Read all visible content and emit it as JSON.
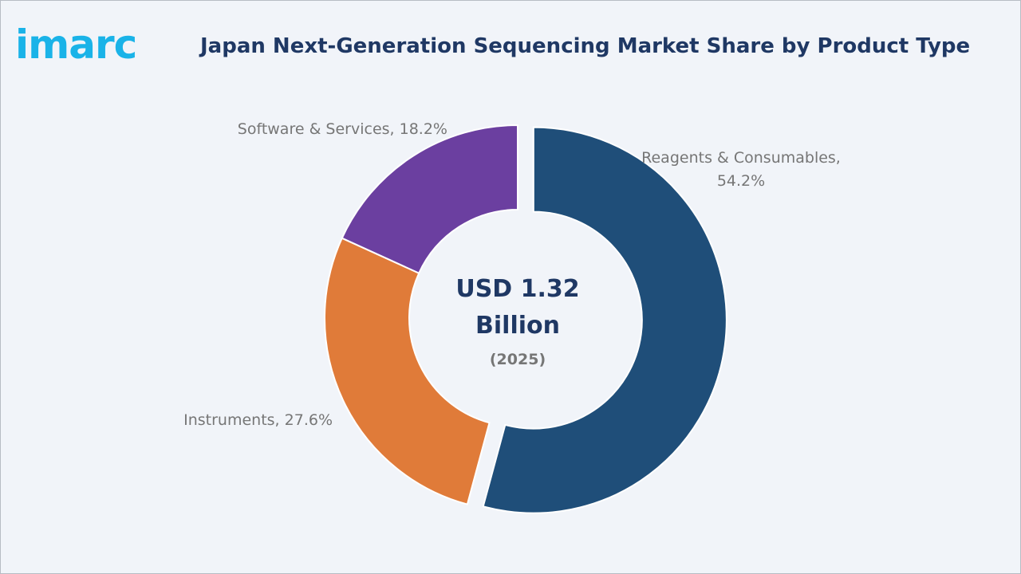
{
  "brand": {
    "logo_text": "imarc",
    "logo_color": "#1ab3e8"
  },
  "chart_data": {
    "type": "pie",
    "title": "Japan Next-Generation Sequencing Market Share by Product Type",
    "center": {
      "value_line1": "USD 1.32",
      "value_line2": "Billion",
      "year": "(2025)"
    },
    "slices": [
      {
        "label": "Reagents & Consumables,",
        "value_text": "54.2%",
        "value": 54.2,
        "color": "#1f4e79"
      },
      {
        "label": "Instruments, 27.6%",
        "value": 27.6,
        "color": "#e07b39"
      },
      {
        "label": "Software & Services, 18.2%",
        "value": 18.2,
        "color": "#6b3fa0"
      }
    ]
  }
}
